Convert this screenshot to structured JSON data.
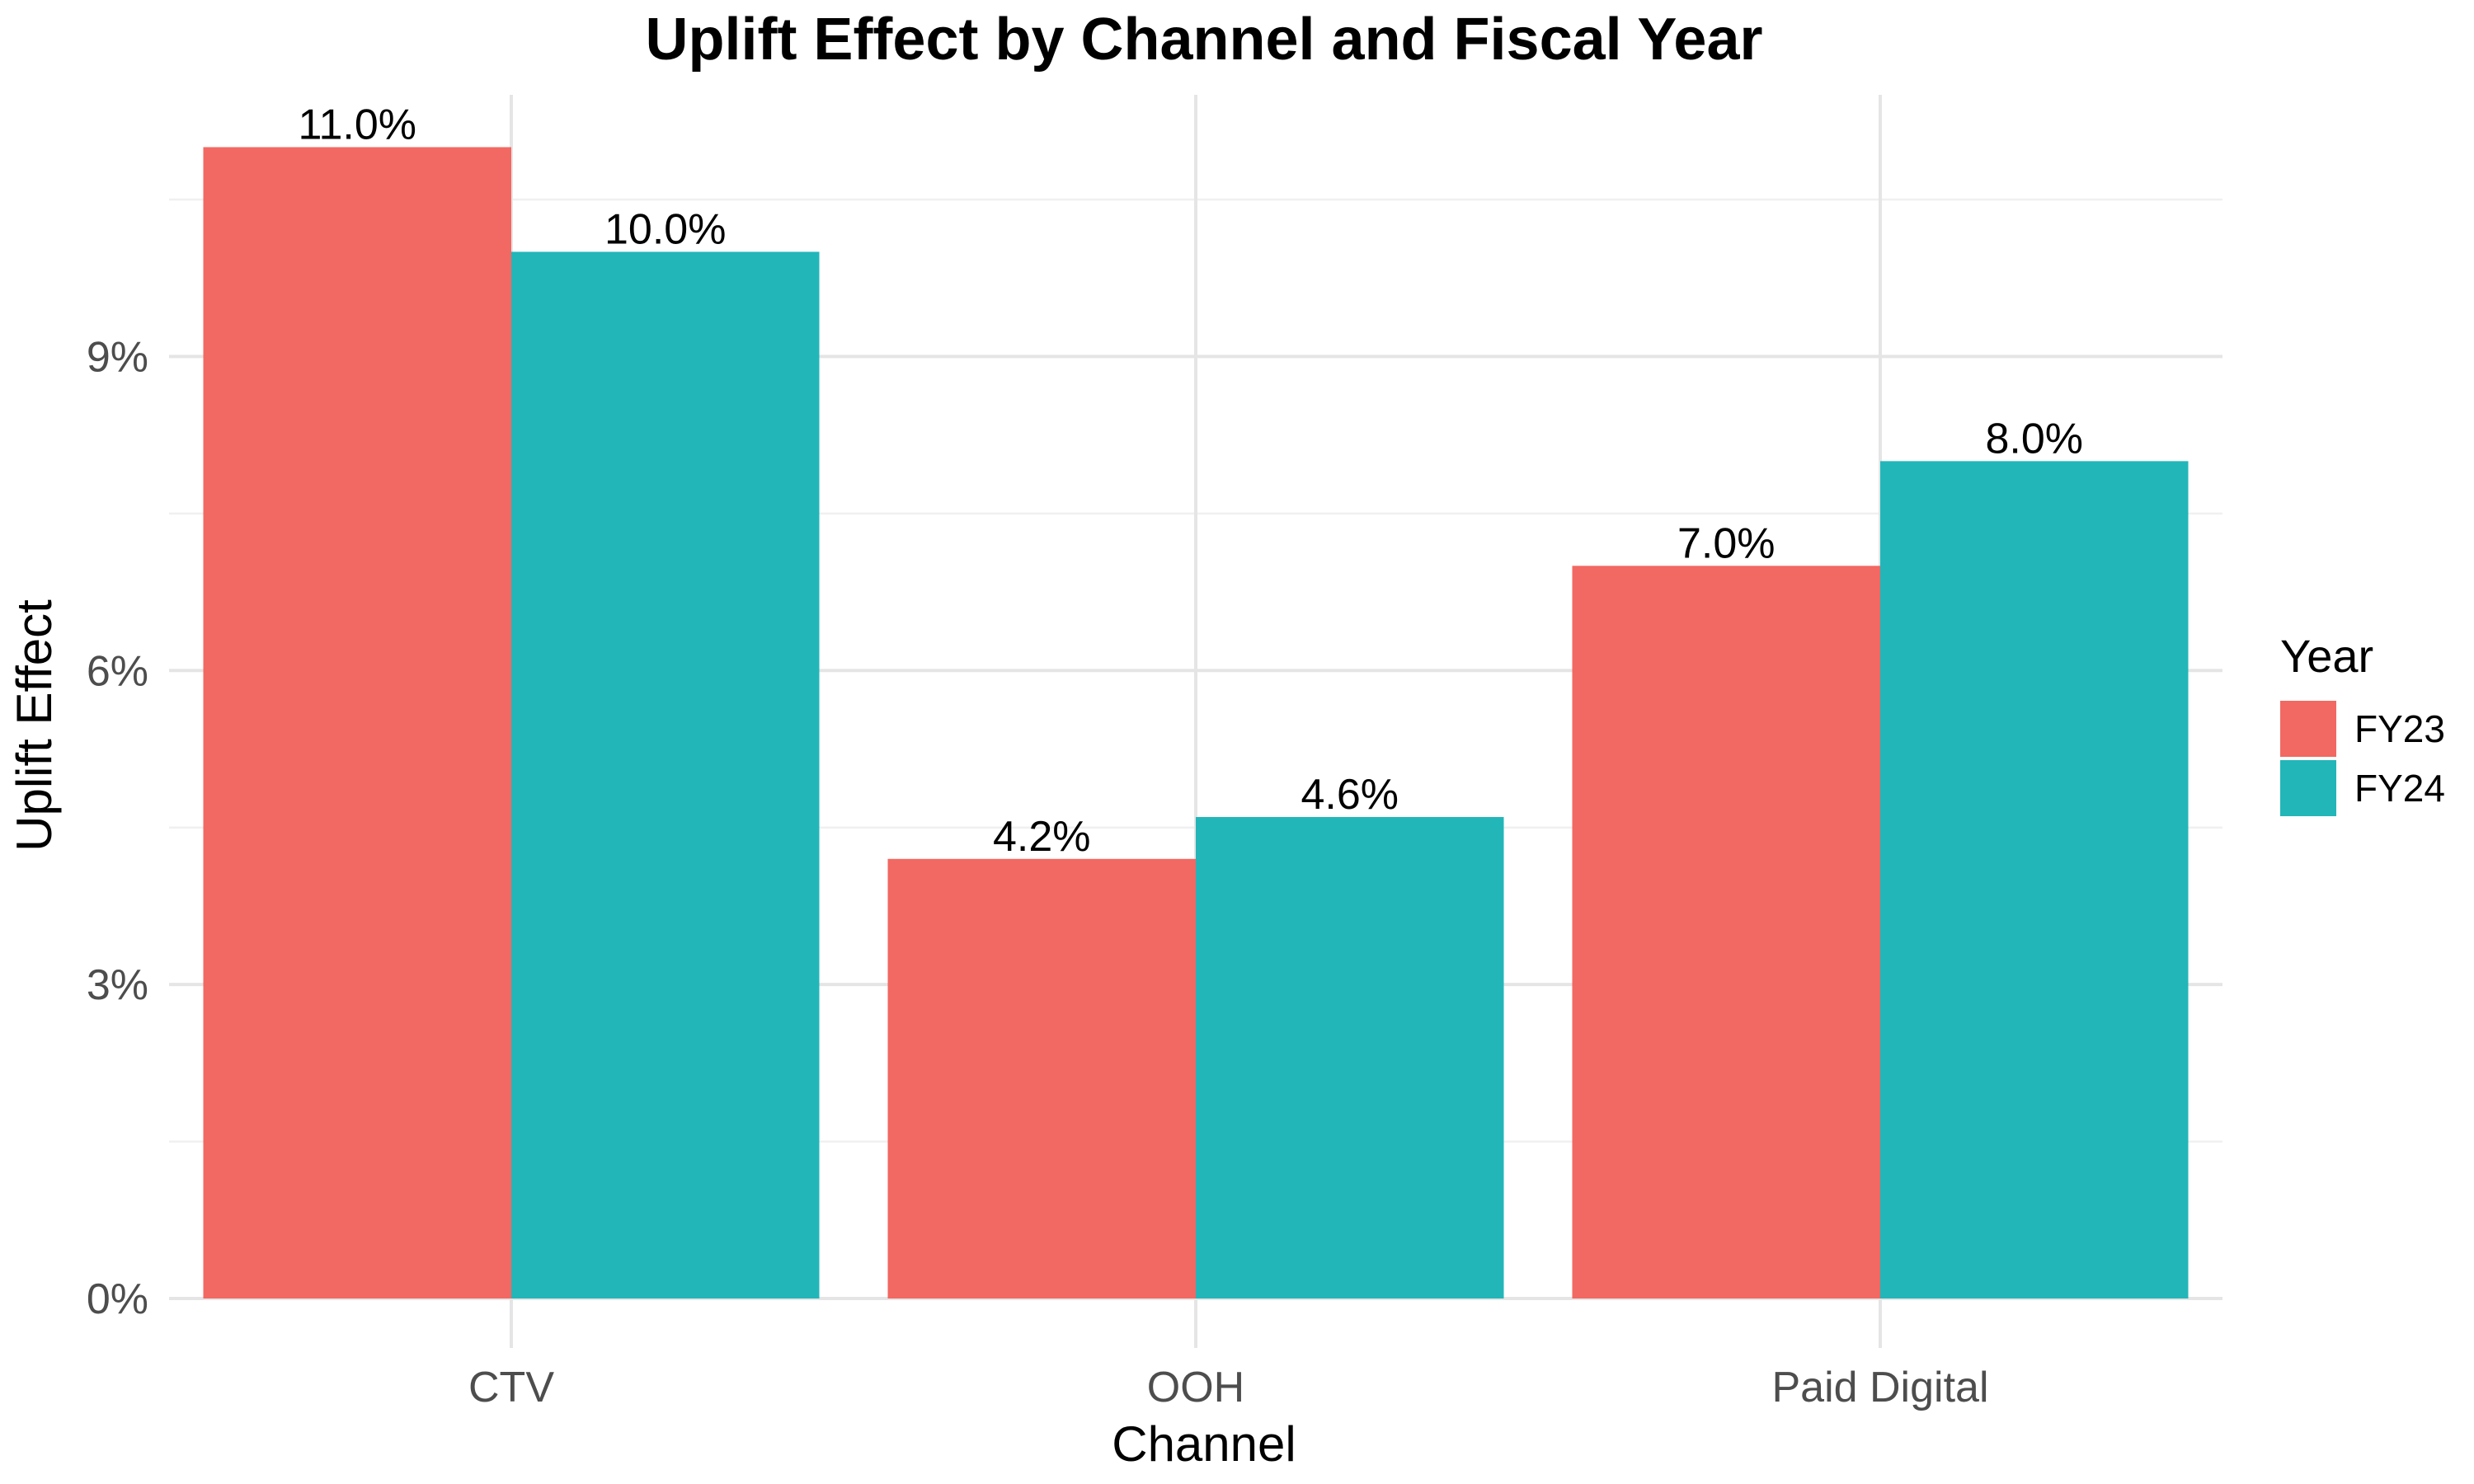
{
  "chart_data": {
    "type": "bar",
    "title": "Uplift Effect by Channel and Fiscal Year",
    "xlabel": "Channel",
    "ylabel": "Uplift Effect",
    "categories": [
      "CTV",
      "OOH",
      "Paid Digital"
    ],
    "series": [
      {
        "name": "FY23",
        "color": "#F26862",
        "values": [
          11.0,
          4.2,
          7.0
        ],
        "labels": [
          "11.0%",
          "4.2%",
          "7.0%"
        ]
      },
      {
        "name": "FY24",
        "color": "#22B6B9",
        "values": [
          10.0,
          4.6,
          8.0
        ],
        "labels": [
          "10.0%",
          "4.6%",
          "8.0%"
        ]
      }
    ],
    "ylim": [
      0,
      11.5
    ],
    "yticks": [
      0,
      3,
      6,
      9
    ],
    "ytick_labels": [
      "0%",
      "3%",
      "6%",
      "9%"
    ],
    "grid": true,
    "legend": {
      "title": "Year",
      "position": "right"
    }
  }
}
